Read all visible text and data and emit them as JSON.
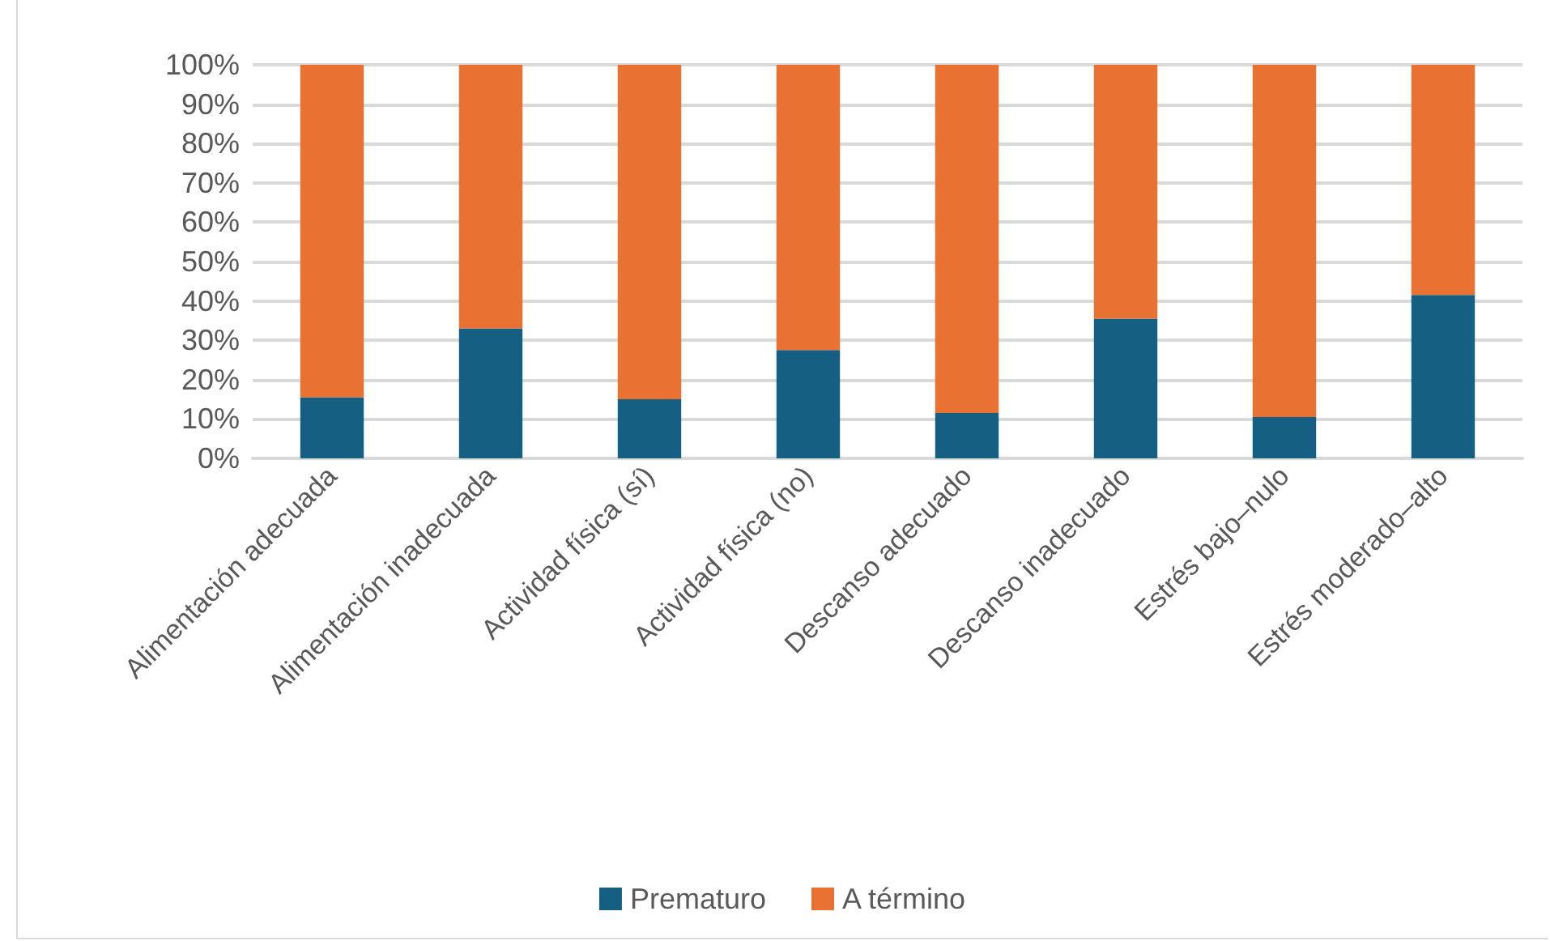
{
  "chart_data": {
    "type": "bar",
    "stacked": true,
    "categories": [
      "Alimentación adecuada",
      "Alimentación inadecuada",
      "Actividad física (sí)",
      "Actividad física (no)",
      "Descanso adecuado",
      "Descanso inadecuado",
      "Estrés bajo–nulo",
      "Estrés moderado–alto"
    ],
    "series": [
      {
        "name": "Prematuro",
        "color": "#156082",
        "values": [
          15.5,
          33,
          15,
          27.5,
          11.5,
          35.5,
          10.5,
          41.5
        ]
      },
      {
        "name": "A término",
        "color": "#e97132",
        "values": [
          84.5,
          67,
          85,
          72.5,
          88.5,
          64.5,
          89.5,
          58.5
        ]
      }
    ],
    "ylim": [
      0,
      100
    ],
    "yticks": [
      {
        "value": 0,
        "label": "0%"
      },
      {
        "value": 10,
        "label": "10%"
      },
      {
        "value": 20,
        "label": "20%"
      },
      {
        "value": 30,
        "label": "30%"
      },
      {
        "value": 40,
        "label": "40%"
      },
      {
        "value": 50,
        "label": "50%"
      },
      {
        "value": 60,
        "label": "60%"
      },
      {
        "value": 70,
        "label": "70%"
      },
      {
        "value": 80,
        "label": "80%"
      },
      {
        "value": 90,
        "label": "90%"
      },
      {
        "value": 100,
        "label": "100%"
      }
    ],
    "grid": "y",
    "legend": "bottom"
  }
}
